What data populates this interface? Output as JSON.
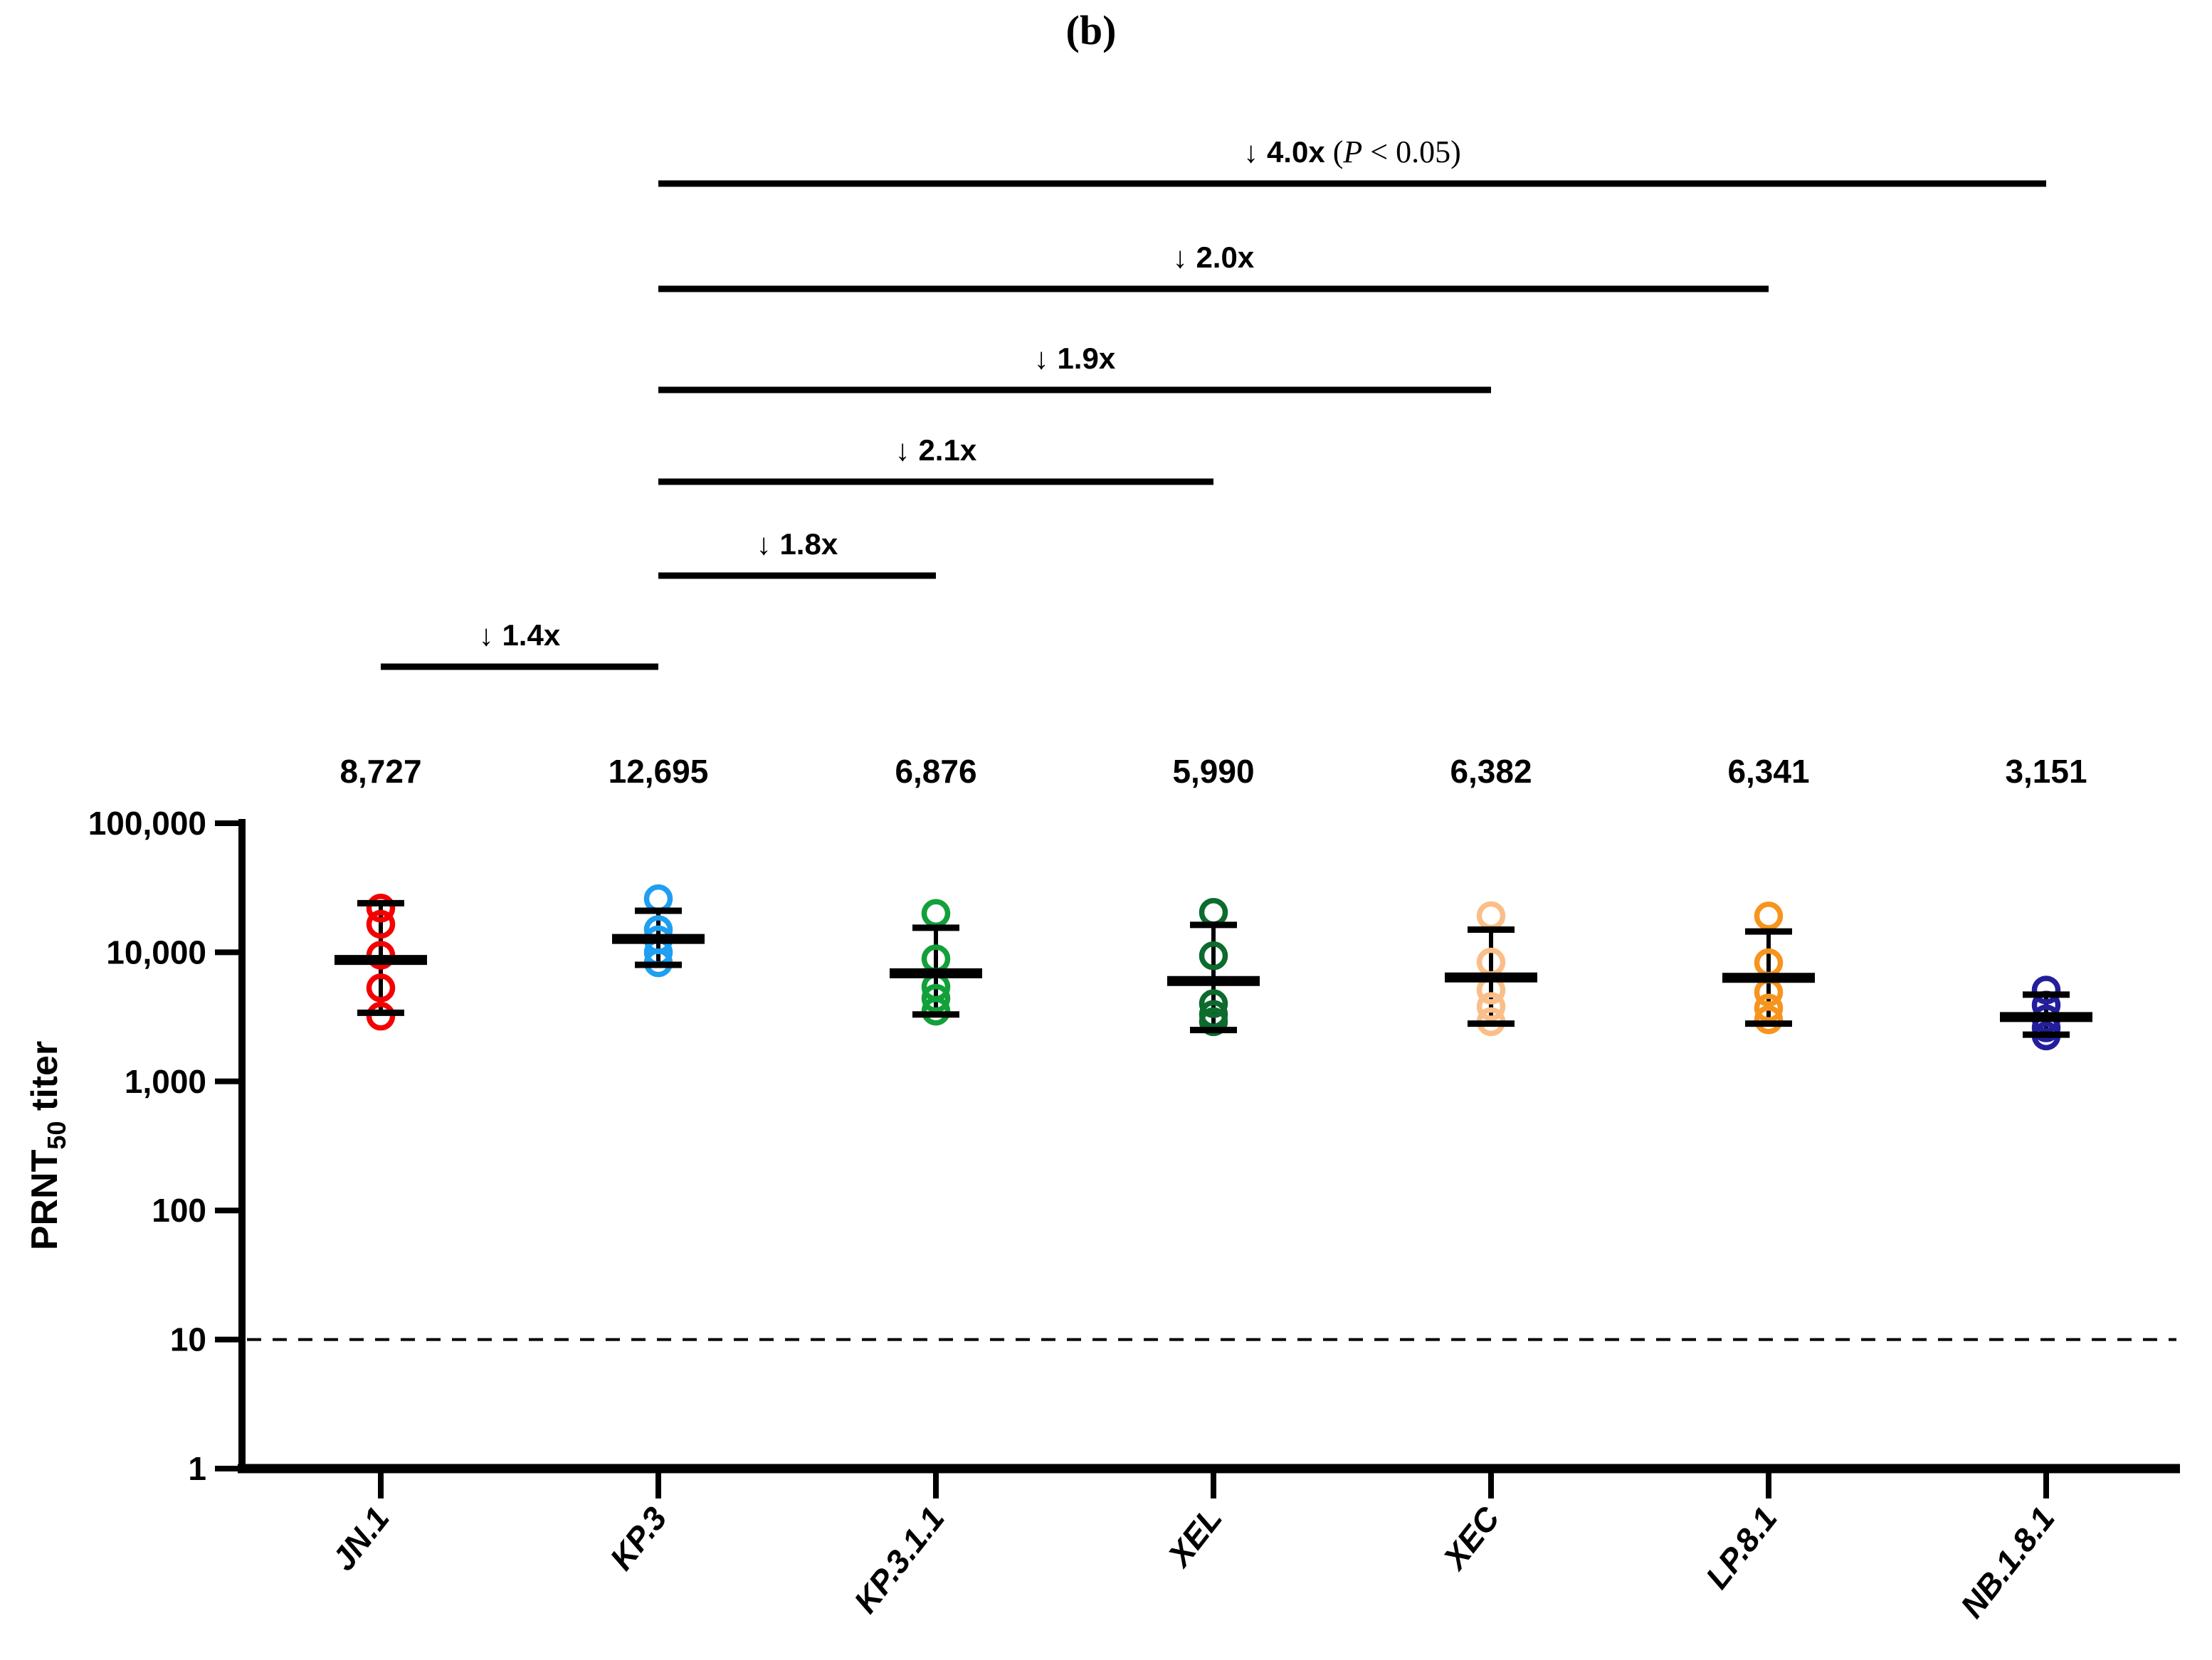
{
  "chart_data": {
    "type": "scatter",
    "title": "(b)",
    "ylabel": "PRNT50 titer",
    "ylabel_parts": {
      "main": "PRNT",
      "subscript": "50",
      "tail": " titer"
    },
    "xlabel": "",
    "yscale": "log",
    "ylim": [
      1,
      100000
    ],
    "grid": false,
    "legend": null,
    "yticks": [
      {
        "value": 100000,
        "label": "100,000"
      },
      {
        "value": 10000,
        "label": "10,000"
      },
      {
        "value": 1000,
        "label": "1,000"
      },
      {
        "value": 100,
        "label": "100"
      },
      {
        "value": 10,
        "label": "10"
      },
      {
        "value": 1,
        "label": "1"
      }
    ],
    "detection_limit": {
      "value": 10,
      "style": "dashed"
    },
    "groups": [
      {
        "label": "JN.1",
        "color": "#f40000",
        "gmt_label": "8,727",
        "gmt": 8727,
        "points": [
          22000,
          16500,
          9500,
          5300,
          3200
        ],
        "whisker_high": 24000,
        "whisker_low": 3400
      },
      {
        "label": "KP.3",
        "color": "#1e9ff2",
        "gmt_label": "12,695",
        "gmt": 12695,
        "points": [
          26000,
          15000,
          12500,
          10000,
          8300
        ],
        "whisker_high": 21000,
        "whisker_low": 8000
      },
      {
        "label": "KP.3.1.1",
        "color": "#12a03a",
        "gmt_label": "6,876",
        "gmt": 6876,
        "points": [
          20000,
          8900,
          5400,
          4400,
          3500
        ],
        "whisker_high": 15500,
        "whisker_low": 3300
      },
      {
        "label": "XEL",
        "color": "#0c6b2d",
        "gmt_label": "5,990",
        "gmt": 5990,
        "points": [
          20400,
          9400,
          4000,
          3300,
          2900
        ],
        "whisker_high": 16300,
        "whisker_low": 2500
      },
      {
        "label": "XEC",
        "color": "#fbbe88",
        "gmt_label": "6,382",
        "gmt": 6382,
        "points": [
          19200,
          8400,
          5100,
          3800,
          2900
        ],
        "whisker_high": 15000,
        "whisker_low": 2800
      },
      {
        "label": "LP.8.1",
        "color": "#f7941e",
        "gmt_label": "6,341",
        "gmt": 6341,
        "points": [
          19100,
          8300,
          4900,
          3700,
          3000
        ],
        "whisker_high": 14500,
        "whisker_low": 2800
      },
      {
        "label": "NB.1.8.1",
        "color": "#221e9c",
        "gmt_label": "3,151",
        "gmt": 3151,
        "points": [
          5100,
          3900,
          3050,
          2600,
          2250
        ],
        "whisker_high": 4700,
        "whisker_low": 2300
      }
    ],
    "comparisons": [
      {
        "arrow": "↓",
        "fold": "4.0x",
        "note_parts": [
          "  (",
          "P",
          " < 0.05)"
        ],
        "from": "KP.3",
        "to": "NB.1.8.1"
      },
      {
        "arrow": "↓",
        "fold": "2.0x",
        "from": "KP.3",
        "to": "LP.8.1"
      },
      {
        "arrow": "↓",
        "fold": "1.9x",
        "from": "KP.3",
        "to": "XEC"
      },
      {
        "arrow": "↓",
        "fold": "2.1x",
        "from": "KP.3",
        "to": "XEL"
      },
      {
        "arrow": "↓",
        "fold": "1.8x",
        "from": "KP.3",
        "to": "KP.3.1.1"
      },
      {
        "arrow": "↓",
        "fold": "1.4x",
        "from": "JN.1",
        "to": "KP.3"
      }
    ]
  }
}
